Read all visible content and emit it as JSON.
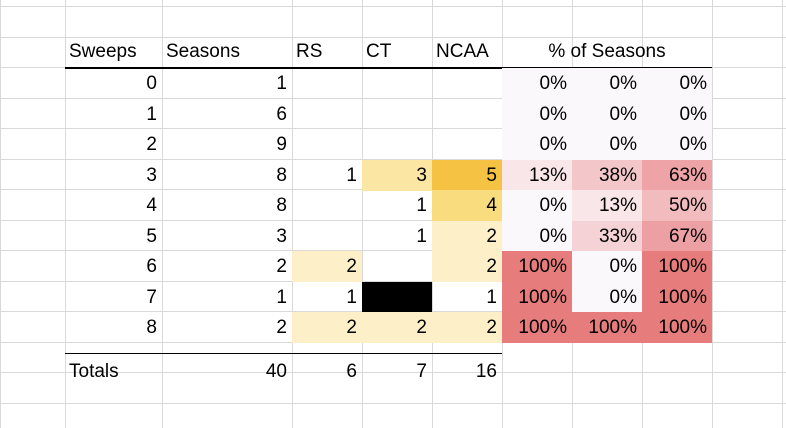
{
  "table": {
    "headers": {
      "sweeps": "Sweeps",
      "seasons": "Seasons",
      "rs": "RS",
      "ct": "CT",
      "ncaa": "NCAA",
      "pct_title": "% of Seasons"
    },
    "rows": [
      {
        "sweeps": "0",
        "seasons": "1",
        "rs": "",
        "ct": "",
        "ncaa": "",
        "pct_rs": "0%",
        "pct_ct": "0%",
        "pct_ncaa": "0%"
      },
      {
        "sweeps": "1",
        "seasons": "6",
        "rs": "",
        "ct": "",
        "ncaa": "",
        "pct_rs": "0%",
        "pct_ct": "0%",
        "pct_ncaa": "0%"
      },
      {
        "sweeps": "2",
        "seasons": "9",
        "rs": "",
        "ct": "",
        "ncaa": "",
        "pct_rs": "0%",
        "pct_ct": "0%",
        "pct_ncaa": "0%"
      },
      {
        "sweeps": "3",
        "seasons": "8",
        "rs": "1",
        "ct": "3",
        "ncaa": "5",
        "pct_rs": "13%",
        "pct_ct": "38%",
        "pct_ncaa": "63%"
      },
      {
        "sweeps": "4",
        "seasons": "8",
        "rs": "",
        "ct": "1",
        "ncaa": "4",
        "pct_rs": "0%",
        "pct_ct": "13%",
        "pct_ncaa": "50%"
      },
      {
        "sweeps": "5",
        "seasons": "3",
        "rs": "",
        "ct": "1",
        "ncaa": "2",
        "pct_rs": "0%",
        "pct_ct": "33%",
        "pct_ncaa": "67%"
      },
      {
        "sweeps": "6",
        "seasons": "2",
        "rs": "2",
        "ct": "",
        "ncaa": "2",
        "pct_rs": "100%",
        "pct_ct": "0%",
        "pct_ncaa": "100%"
      },
      {
        "sweeps": "7",
        "seasons": "1",
        "rs": "1",
        "ct": "",
        "ncaa": "1",
        "pct_rs": "100%",
        "pct_ct": "0%",
        "pct_ncaa": "100%"
      },
      {
        "sweeps": "8",
        "seasons": "2",
        "rs": "2",
        "ct": "2",
        "ncaa": "2",
        "pct_rs": "100%",
        "pct_ct": "100%",
        "pct_ncaa": "100%"
      }
    ],
    "totals": {
      "label": "Totals",
      "seasons": "40",
      "rs": "6",
      "ct": "7",
      "ncaa": "16"
    }
  },
  "fills": {
    "rs": [
      "",
      "",
      "",
      "",
      "",
      "",
      "#fdf0c8",
      "",
      "#fdf0c8"
    ],
    "ct": [
      "",
      "",
      "",
      "#fbe6a4",
      "",
      "",
      "",
      "#000000",
      "#fdf0c8"
    ],
    "ncaa": [
      "",
      "",
      "",
      "#f5c243",
      "#f9dc7e",
      "#fdf0c8",
      "#fdf0c8",
      "",
      "#fdf0c8"
    ],
    "pct_rs": [
      "#fbf8fc",
      "#fbf8fc",
      "#fbf8fc",
      "#f9e6e9",
      "#fbf8fc",
      "#fbf8fc",
      "#e67c7c",
      "#e67c7c",
      "#e67c7c"
    ],
    "pct_ct": [
      "#fbf8fc",
      "#fbf8fc",
      "#fbf8fc",
      "#f3c6c9",
      "#f9e6e9",
      "#f5d2d5",
      "#fbf8fc",
      "#fbf8fc",
      "#e67c7c"
    ],
    "pct_ncaa": [
      "#fbf8fc",
      "#fbf8fc",
      "#fbf8fc",
      "#eea3a6",
      "#f2bcbe",
      "#eda0a3",
      "#e67c7c",
      "#e67c7c",
      "#e67c7c"
    ]
  }
}
